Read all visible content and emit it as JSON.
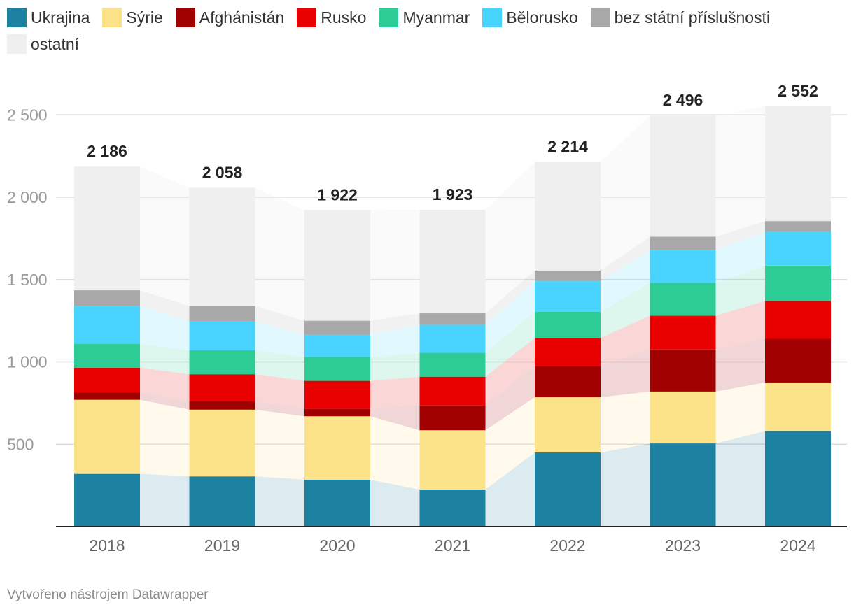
{
  "chart_data": {
    "type": "bar",
    "stacked": true,
    "categories": [
      "2018",
      "2019",
      "2020",
      "2021",
      "2022",
      "2023",
      "2024"
    ],
    "series": [
      {
        "name": "Ukrajina",
        "color": "#1d81a2",
        "values": [
          320,
          305,
          285,
          225,
          450,
          505,
          580
        ]
      },
      {
        "name": "Sýrie",
        "color": "#fce288",
        "values": [
          450,
          405,
          385,
          360,
          335,
          315,
          295
        ]
      },
      {
        "name": "Afghánistán",
        "color": "#a10000",
        "values": [
          45,
          50,
          45,
          150,
          190,
          255,
          265
        ]
      },
      {
        "name": "Rusko",
        "color": "#e90000",
        "values": [
          150,
          165,
          170,
          175,
          170,
          205,
          230
        ]
      },
      {
        "name": "Myanmar",
        "color": "#2ecc95",
        "values": [
          145,
          145,
          145,
          145,
          160,
          200,
          215
        ]
      },
      {
        "name": "Bělorusko",
        "color": "#49d4ff",
        "values": [
          230,
          175,
          135,
          170,
          185,
          200,
          205
        ]
      },
      {
        "name": "bez státní příslušnosti",
        "color": "#a8a8a8",
        "values": [
          95,
          95,
          85,
          70,
          65,
          80,
          65
        ]
      },
      {
        "name": "ostatní",
        "color": "#efefef",
        "values": [
          751,
          718,
          672,
          628,
          659,
          736,
          697
        ]
      }
    ],
    "totals": [
      "2 186",
      "2 058",
      "1 922",
      "1 923",
      "2 214",
      "2 496",
      "2 552"
    ],
    "total_values": [
      2186,
      2058,
      1922,
      1923,
      2214,
      2496,
      2552
    ],
    "y_ticks": [
      500,
      1000,
      1500,
      2000,
      2500
    ],
    "y_tick_labels": [
      "500",
      "1 000",
      "1 500",
      "2 000",
      "2 500"
    ],
    "ylim": [
      0,
      2600
    ],
    "grid": true,
    "legend": "top"
  },
  "footer": {
    "credit": "Vytvořeno nástrojem Datawrapper"
  }
}
